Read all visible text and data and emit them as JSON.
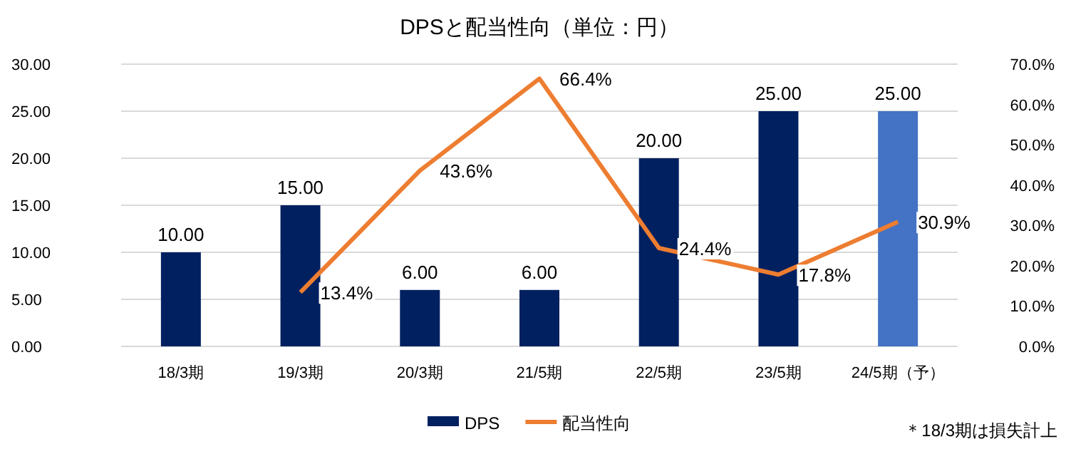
{
  "chart_data": {
    "type": "bar",
    "title": "DPSと配当性向（単位：円）",
    "categories": [
      "18/3期",
      "19/3期",
      "20/3期",
      "21/5期",
      "22/5期",
      "23/5期",
      "24/5期（予）"
    ],
    "series": [
      {
        "name": "DPS",
        "color": "#002060",
        "colors": [
          "#002060",
          "#002060",
          "#002060",
          "#002060",
          "#002060",
          "#002060",
          "#4472c4"
        ],
        "values": [
          10,
          15,
          6,
          6,
          20,
          25,
          25
        ],
        "value_labels": [
          "10.00",
          "15.00",
          "6.00",
          "6.00",
          "20.00",
          "25.00",
          "25.00"
        ]
      },
      {
        "name": "配当性向",
        "type": "line",
        "axis": "y2",
        "color": "#ed7d31",
        "marker": "none",
        "line_style": "solid",
        "values": [
          null,
          13.4,
          43.6,
          66.4,
          24.4,
          17.8,
          30.9
        ],
        "value_labels": [
          null,
          "13.4%",
          "43.6%",
          "66.4%",
          "24.4%",
          "17.8%",
          "30.9%"
        ]
      }
    ],
    "ylim": [
      0,
      30
    ],
    "yticks": [
      {
        "value": 0,
        "label": "0.00"
      },
      {
        "value": 5,
        "label": "5.00"
      },
      {
        "value": 10,
        "label": "10.00"
      },
      {
        "value": 15,
        "label": "15.00"
      },
      {
        "value": 20,
        "label": "20.00"
      },
      {
        "value": 25,
        "label": "25.00"
      },
      {
        "value": 30,
        "label": "30.00"
      }
    ],
    "y2lim": [
      0,
      70
    ],
    "y2ticks": [
      {
        "value": 0,
        "label": "0.0%"
      },
      {
        "value": 10,
        "label": "10.0%"
      },
      {
        "value": 20,
        "label": "20.0%"
      },
      {
        "value": 30,
        "label": "30.0%"
      },
      {
        "value": 40,
        "label": "40.0%"
      },
      {
        "value": 50,
        "label": "50.0%"
      },
      {
        "value": 60,
        "label": "60.0%"
      },
      {
        "value": 70,
        "label": "70.0%"
      }
    ],
    "grid": "y",
    "legend": "bottom",
    "annotations": [
      "＊18/3期は損失計上"
    ]
  }
}
